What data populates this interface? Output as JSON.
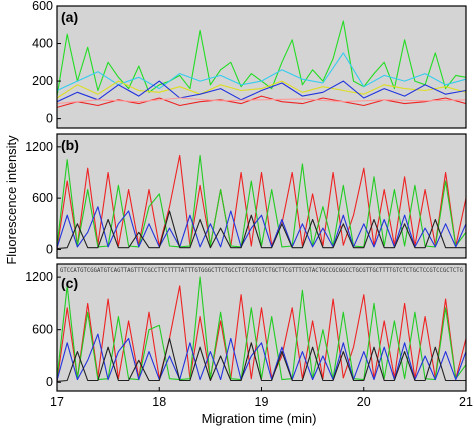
{
  "chart_data": [
    {
      "type": "line",
      "panel_label": "(a)",
      "xlim": [
        17,
        21
      ],
      "ylim": [
        -50,
        600
      ],
      "yticks": [
        0,
        200,
        400,
        600
      ],
      "background": "#d4d4d4",
      "grid": false,
      "series": [
        {
          "color": "#22dd22",
          "x": [
            17.0,
            17.1,
            17.2,
            17.3,
            17.4,
            17.5,
            17.6,
            17.7,
            17.8,
            17.9,
            18.0,
            18.1,
            18.2,
            18.3,
            18.4,
            18.5,
            18.6,
            18.7,
            18.8,
            18.9,
            19.0,
            19.1,
            19.2,
            19.3,
            19.4,
            19.5,
            19.6,
            19.7,
            19.8,
            19.9,
            20.0,
            20.1,
            20.2,
            20.3,
            20.4,
            20.5,
            20.6,
            20.7,
            20.8,
            20.9,
            21.0
          ],
          "y": [
            120,
            450,
            200,
            380,
            150,
            300,
            220,
            160,
            280,
            140,
            180,
            200,
            230,
            160,
            470,
            180,
            260,
            300,
            170,
            240,
            200,
            160,
            300,
            420,
            180,
            260,
            200,
            320,
            520,
            200,
            170,
            240,
            300,
            160,
            420,
            200,
            180,
            350,
            160,
            230,
            220
          ]
        },
        {
          "color": "#33ccee",
          "x": [
            17.0,
            17.2,
            17.4,
            17.6,
            17.8,
            18.0,
            18.2,
            18.4,
            18.6,
            18.8,
            19.0,
            19.2,
            19.4,
            19.6,
            19.8,
            20.0,
            20.2,
            20.4,
            20.6,
            20.8,
            21.0
          ],
          "y": [
            150,
            200,
            250,
            180,
            220,
            160,
            240,
            200,
            230,
            180,
            200,
            260,
            210,
            190,
            350,
            170,
            230,
            200,
            240,
            180,
            210
          ]
        },
        {
          "color": "#dddd22",
          "x": [
            17.0,
            17.2,
            17.4,
            17.6,
            17.8,
            18.0,
            18.2,
            18.4,
            18.6,
            18.8,
            19.0,
            19.2,
            19.4,
            19.6,
            19.8,
            20.0,
            20.2,
            20.4,
            20.6,
            20.8,
            21.0
          ],
          "y": [
            110,
            180,
            130,
            200,
            150,
            140,
            170,
            130,
            180,
            150,
            160,
            200,
            140,
            170,
            150,
            130,
            180,
            160,
            150,
            170,
            140
          ]
        },
        {
          "color": "#2233dd",
          "x": [
            17.0,
            17.2,
            17.4,
            17.6,
            17.8,
            18.0,
            18.2,
            18.4,
            18.6,
            18.8,
            19.0,
            19.2,
            19.4,
            19.6,
            19.8,
            20.0,
            20.2,
            20.4,
            20.6,
            20.8,
            21.0
          ],
          "y": [
            90,
            140,
            100,
            180,
            120,
            200,
            110,
            130,
            160,
            100,
            150,
            190,
            120,
            140,
            200,
            110,
            160,
            120,
            180,
            130,
            150
          ]
        },
        {
          "color": "#ee2222",
          "x": [
            17.0,
            17.2,
            17.4,
            17.6,
            17.8,
            18.0,
            18.2,
            18.4,
            18.6,
            18.8,
            19.0,
            19.2,
            19.4,
            19.6,
            19.8,
            20.0,
            20.2,
            20.4,
            20.6,
            20.8,
            21.0
          ],
          "y": [
            60,
            90,
            70,
            100,
            80,
            110,
            70,
            90,
            100,
            80,
            120,
            90,
            80,
            110,
            90,
            70,
            100,
            80,
            90,
            110,
            80
          ]
        },
        {
          "color": "#ff9999",
          "x": [
            17.0,
            17.4,
            17.8,
            18.2,
            18.6,
            19.0,
            19.4,
            19.8,
            20.2,
            20.6,
            21.0
          ],
          "y": [
            80,
            100,
            90,
            110,
            95,
            100,
            105,
            90,
            100,
            95,
            100
          ]
        }
      ]
    },
    {
      "type": "line",
      "panel_label": "(b)",
      "xlim": [
        17,
        21
      ],
      "ylim": [
        -100,
        1350
      ],
      "yticks": [
        0,
        600,
        1200
      ],
      "background": "#d4d4d4",
      "grid": false,
      "series": [
        {
          "color": "#ee2222",
          "x": [
            17.0,
            17.1,
            17.2,
            17.3,
            17.4,
            17.5,
            17.6,
            17.7,
            17.8,
            17.9,
            18.0,
            18.1,
            18.2,
            18.3,
            18.4,
            18.5,
            18.6,
            18.7,
            18.8,
            18.9,
            19.0,
            19.1,
            19.2,
            19.3,
            19.4,
            19.5,
            19.6,
            19.7,
            19.8,
            19.9,
            20.0,
            20.1,
            20.2,
            20.3,
            20.4,
            20.5,
            20.6,
            20.7,
            20.8,
            20.9,
            21.0
          ],
          "y": [
            0,
            800,
            50,
            950,
            60,
            900,
            40,
            700,
            50,
            700,
            40,
            500,
            1100,
            40,
            750,
            50,
            700,
            40,
            900,
            40,
            900,
            50,
            300,
            900,
            40,
            650,
            40,
            900,
            50,
            400,
            950,
            40,
            700,
            50,
            850,
            40,
            700,
            50,
            900,
            40,
            600
          ]
        },
        {
          "color": "#22cc22",
          "x": [
            17.0,
            17.1,
            17.2,
            17.3,
            17.4,
            17.5,
            17.6,
            17.7,
            17.8,
            17.9,
            18.0,
            18.1,
            18.2,
            18.3,
            18.4,
            18.5,
            18.6,
            18.7,
            18.8,
            18.9,
            19.0,
            19.1,
            19.2,
            19.3,
            19.4,
            19.5,
            19.6,
            19.7,
            19.8,
            19.9,
            20.0,
            20.1,
            20.2,
            20.3,
            20.4,
            20.5,
            20.6,
            20.7,
            20.8,
            20.9,
            21.0
          ],
          "y": [
            40,
            1050,
            40,
            700,
            30,
            40,
            750,
            40,
            30,
            500,
            650,
            40,
            30,
            40,
            1100,
            40,
            700,
            40,
            30,
            800,
            40,
            700,
            30,
            40,
            1000,
            40,
            500,
            40,
            750,
            40,
            30,
            850,
            40,
            700,
            40,
            750,
            40,
            30,
            800,
            40,
            200
          ]
        },
        {
          "color": "#2233dd",
          "x": [
            17.0,
            17.1,
            17.2,
            17.3,
            17.4,
            17.5,
            17.6,
            17.7,
            17.8,
            17.9,
            18.0,
            18.1,
            18.2,
            18.3,
            18.4,
            18.5,
            18.6,
            18.7,
            18.8,
            18.9,
            19.0,
            19.1,
            19.2,
            19.3,
            19.4,
            19.5,
            19.6,
            19.7,
            19.8,
            19.9,
            20.0,
            20.1,
            20.2,
            20.3,
            20.4,
            20.5,
            20.6,
            20.7,
            20.8,
            20.9,
            21.0
          ],
          "y": [
            20,
            400,
            30,
            200,
            500,
            30,
            300,
            450,
            30,
            300,
            30,
            250,
            30,
            400,
            30,
            300,
            30,
            450,
            30,
            250,
            400,
            30,
            350,
            30,
            300,
            30,
            250,
            30,
            400,
            30,
            300,
            30,
            350,
            30,
            400,
            30,
            250,
            30,
            300,
            30,
            300
          ]
        },
        {
          "color": "#222222",
          "x": [
            17.0,
            17.1,
            17.2,
            17.3,
            17.4,
            17.5,
            17.6,
            17.7,
            17.8,
            17.9,
            18.0,
            18.1,
            18.2,
            18.3,
            18.4,
            18.5,
            18.6,
            18.7,
            18.8,
            18.9,
            19.0,
            19.1,
            19.2,
            19.3,
            19.4,
            19.5,
            19.6,
            19.7,
            19.8,
            19.9,
            20.0,
            20.1,
            20.2,
            20.3,
            20.4,
            20.5,
            20.6,
            20.7,
            20.8,
            20.9,
            21.0
          ],
          "y": [
            10,
            20,
            300,
            20,
            20,
            350,
            20,
            20,
            200,
            20,
            20,
            450,
            20,
            20,
            350,
            20,
            250,
            20,
            20,
            400,
            20,
            20,
            300,
            20,
            20,
            350,
            20,
            20,
            300,
            20,
            20,
            350,
            20,
            20,
            300,
            20,
            20,
            350,
            20,
            20,
            20
          ]
        }
      ]
    },
    {
      "type": "line",
      "panel_label": "(c)",
      "xlim": [
        17,
        21
      ],
      "ylim": [
        -100,
        1350
      ],
      "yticks": [
        0,
        600,
        1200
      ],
      "xticks": [
        17,
        18,
        19,
        20,
        21
      ],
      "xlabel": "Migration time (min)",
      "background": "#d4d4d4",
      "grid": false,
      "sequence_text": "GTCCATGTCGGATGTCAGTTAGTTTCGCCTTCTTTTATTTGTGGGCTTCTGCCTCTCGTGTCTGCTTCGTTTCGTACTGCCGCGGCCTGCGTTGCTTTTGTCTCTGCTCCGTCCGCTCTG",
      "series": [
        {
          "color": "#ee2222",
          "x": [
            17.0,
            17.1,
            17.2,
            17.3,
            17.4,
            17.5,
            17.6,
            17.7,
            17.8,
            17.9,
            18.0,
            18.1,
            18.2,
            18.3,
            18.4,
            18.5,
            18.6,
            18.7,
            18.8,
            18.9,
            19.0,
            19.1,
            19.2,
            19.3,
            19.4,
            19.5,
            19.6,
            19.7,
            19.8,
            19.9,
            20.0,
            20.1,
            20.2,
            20.3,
            20.4,
            20.5,
            20.6,
            20.7,
            20.8,
            20.9,
            21.0
          ],
          "y": [
            0,
            850,
            50,
            900,
            60,
            950,
            40,
            700,
            50,
            800,
            40,
            500,
            1100,
            40,
            750,
            50,
            700,
            40,
            1000,
            40,
            850,
            50,
            300,
            850,
            40,
            700,
            40,
            950,
            50,
            400,
            1000,
            40,
            700,
            50,
            900,
            40,
            750,
            50,
            950,
            40,
            500
          ]
        },
        {
          "color": "#22cc22",
          "x": [
            17.0,
            17.1,
            17.2,
            17.3,
            17.4,
            17.5,
            17.6,
            17.7,
            17.8,
            17.9,
            18.0,
            18.1,
            18.2,
            18.3,
            18.4,
            18.5,
            18.6,
            18.7,
            18.8,
            18.9,
            19.0,
            19.1,
            19.2,
            19.3,
            19.4,
            19.5,
            19.6,
            19.7,
            19.8,
            19.9,
            20.0,
            20.1,
            20.2,
            20.3,
            20.4,
            20.5,
            20.6,
            20.7,
            20.8,
            20.9,
            21.0
          ],
          "y": [
            40,
            1100,
            40,
            800,
            30,
            40,
            750,
            40,
            30,
            600,
            650,
            40,
            30,
            40,
            1200,
            40,
            800,
            40,
            30,
            850,
            40,
            750,
            30,
            40,
            1050,
            40,
            600,
            40,
            800,
            40,
            30,
            900,
            40,
            700,
            40,
            800,
            40,
            30,
            850,
            40,
            200
          ]
        },
        {
          "color": "#2233dd",
          "x": [
            17.0,
            17.1,
            17.2,
            17.3,
            17.4,
            17.5,
            17.6,
            17.7,
            17.8,
            17.9,
            18.0,
            18.1,
            18.2,
            18.3,
            18.4,
            18.5,
            18.6,
            18.7,
            18.8,
            18.9,
            19.0,
            19.1,
            19.2,
            19.3,
            19.4,
            19.5,
            19.6,
            19.7,
            19.8,
            19.9,
            20.0,
            20.1,
            20.2,
            20.3,
            20.4,
            20.5,
            20.6,
            20.7,
            20.8,
            20.9,
            21.0
          ],
          "y": [
            20,
            450,
            30,
            250,
            550,
            30,
            350,
            500,
            30,
            350,
            30,
            300,
            30,
            450,
            30,
            350,
            30,
            500,
            30,
            300,
            450,
            30,
            400,
            30,
            350,
            30,
            300,
            30,
            450,
            30,
            350,
            30,
            400,
            30,
            450,
            30,
            300,
            30,
            350,
            30,
            350
          ]
        },
        {
          "color": "#222222",
          "x": [
            17.0,
            17.1,
            17.2,
            17.3,
            17.4,
            17.5,
            17.6,
            17.7,
            17.8,
            17.9,
            18.0,
            18.1,
            18.2,
            18.3,
            18.4,
            18.5,
            18.6,
            18.7,
            18.8,
            18.9,
            19.0,
            19.1,
            19.2,
            19.3,
            19.4,
            19.5,
            19.6,
            19.7,
            19.8,
            19.9,
            20.0,
            20.1,
            20.2,
            20.3,
            20.4,
            20.5,
            20.6,
            20.7,
            20.8,
            20.9,
            21.0
          ],
          "y": [
            10,
            20,
            350,
            20,
            20,
            400,
            20,
            20,
            250,
            20,
            20,
            500,
            20,
            20,
            400,
            20,
            300,
            20,
            20,
            450,
            20,
            20,
            350,
            20,
            20,
            400,
            20,
            20,
            350,
            20,
            20,
            400,
            20,
            20,
            350,
            20,
            20,
            400,
            20,
            20,
            20
          ]
        }
      ]
    }
  ],
  "figure": {
    "ylabel": "Fluorescence intensity",
    "xlabel": "Migration time (min)"
  },
  "colors": {
    "panel_bg": "#d4d4d4",
    "axis": "#000000"
  }
}
